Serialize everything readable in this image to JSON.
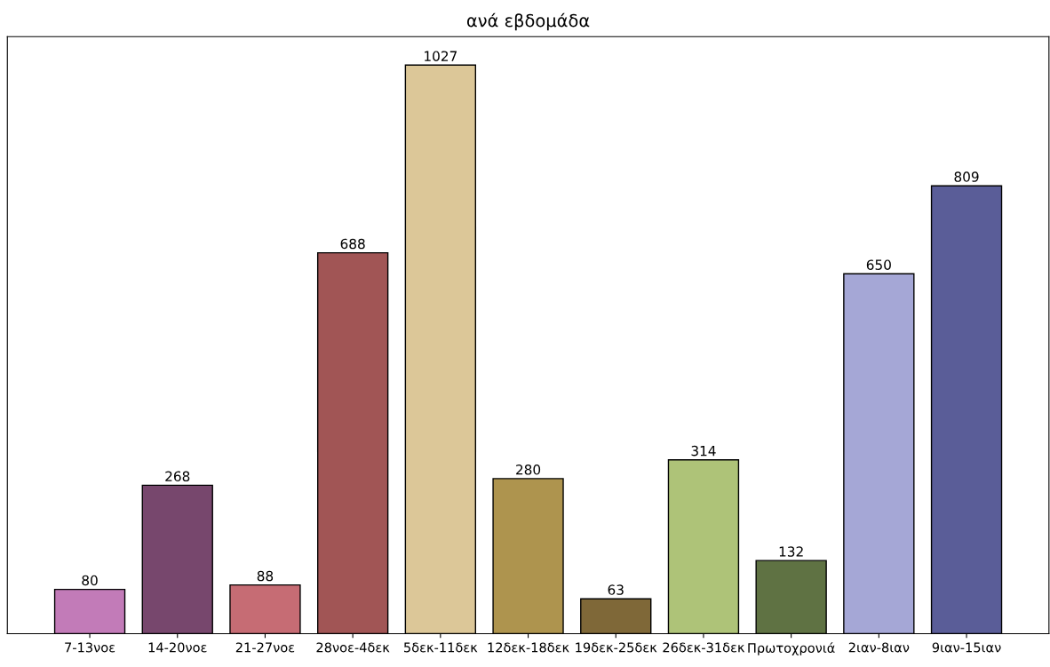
{
  "chart_data": {
    "type": "bar",
    "title": "ανά εβδομάδα",
    "categories": [
      "7-13νοε",
      "14-20νοε",
      "21-27νοε",
      "28νοε-4δεκ",
      "5δεκ-11δεκ",
      "12δεκ-18δεκ",
      "19δεκ-25δεκ",
      "26δεκ-31δεκ",
      "Πρωτοχρονιά",
      "2ιαν-8ιαν",
      "9ιαν-15ιαν"
    ],
    "values": [
      80,
      268,
      88,
      688,
      1027,
      280,
      63,
      314,
      132,
      650,
      809
    ],
    "colors": [
      "#c27bb8",
      "#77476d",
      "#c66c74",
      "#a15555",
      "#dcc798",
      "#ae944e",
      "#7f6838",
      "#aec378",
      "#5f7243",
      "#a5a7d6",
      "#5a5d98"
    ],
    "data_labels": true,
    "tick_labels": "x"
  }
}
